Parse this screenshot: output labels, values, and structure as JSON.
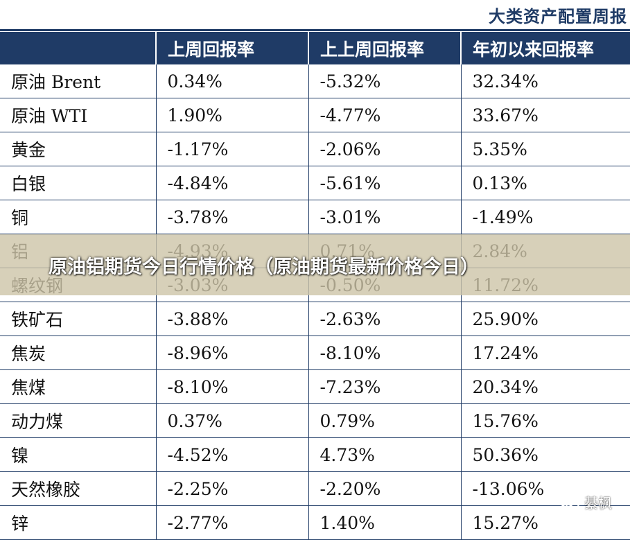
{
  "header": {
    "title": "大类资产配置周报"
  },
  "table": {
    "columns": [
      "",
      "上周回报率",
      "上上周回报率",
      "年初以来回报率"
    ],
    "rows": [
      [
        "原油 Brent",
        "0.34%",
        "-5.32%",
        "32.34%"
      ],
      [
        "原油 WTI",
        "1.90%",
        "-4.77%",
        "33.67%"
      ],
      [
        "黄金",
        "-1.17%",
        "-2.06%",
        "5.35%"
      ],
      [
        "白银",
        "-4.84%",
        "-5.61%",
        "0.13%"
      ],
      [
        "铜",
        "-3.78%",
        "-3.01%",
        "-1.49%"
      ],
      [
        "铝",
        "-4.93%",
        "0.71%",
        "2.84%"
      ],
      [
        "螺纹钢",
        "-3.03%",
        "-0.50%",
        "11.72%"
      ],
      [
        "铁矿石",
        "-3.88%",
        "-2.63%",
        "25.90%"
      ],
      [
        "焦炭",
        "-8.96%",
        "-8.10%",
        "17.24%"
      ],
      [
        "焦煤",
        "-8.10%",
        "-7.23%",
        "20.34%"
      ],
      [
        "动力煤",
        "0.37%",
        "0.79%",
        "15.76%"
      ],
      [
        "镍",
        "-4.52%",
        "4.73%",
        "50.36%"
      ],
      [
        "天然橡胶",
        "-2.25%",
        "-2.20%",
        "-13.06%"
      ],
      [
        "锌",
        "-2.77%",
        "1.40%",
        "15.27%"
      ]
    ]
  },
  "overlay": {
    "text": "原油铝期货今日行情价格（原油期货最新价格今日）"
  },
  "watermark": {
    "icon": "wechat-icon",
    "text": "綦枫"
  },
  "colors": {
    "header_bg": "#1f3b66",
    "border": "#1f3b66",
    "overlay_bg": "#cdc4a8"
  }
}
